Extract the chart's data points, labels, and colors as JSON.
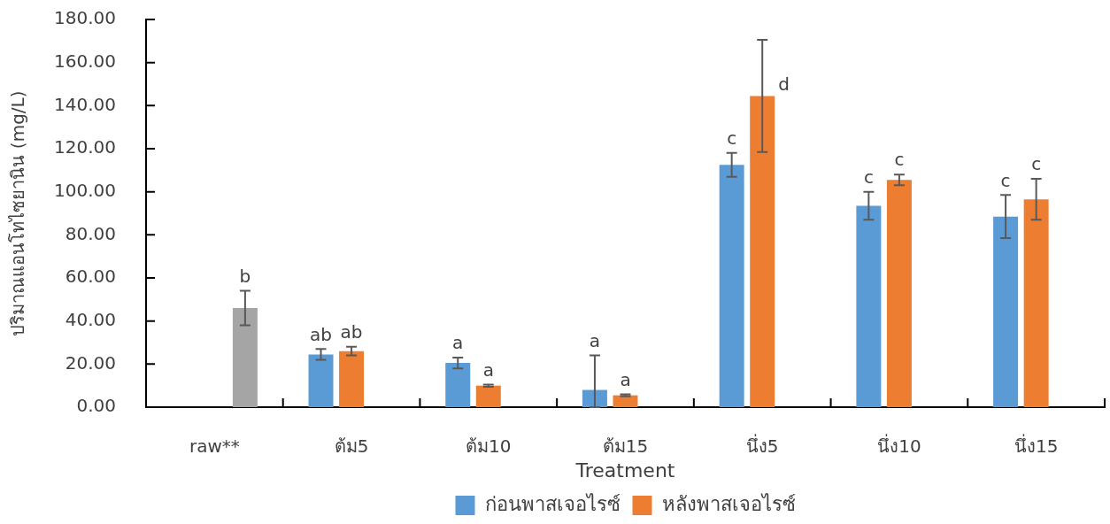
{
  "chart_data": {
    "type": "bar",
    "xlabel": "Treatment",
    "ylabel": "ปริมาณแอนโทไซยานิน (mg/L)",
    "categories": [
      "raw**",
      "ต้ม5",
      "ต้ม10",
      "ต้ม15",
      "นึ่ง5",
      "นึ่ง10",
      "นึ่ง15"
    ],
    "series": [
      {
        "name": "ก่อนพาสเจอไรซ์",
        "color": "#5b9bd5",
        "values": [
          null,
          24.5,
          20.5,
          8,
          112.5,
          93.5,
          88.5
        ],
        "errors": [
          null,
          2.5,
          2.5,
          [
            0,
            24
          ],
          5.5,
          6.5,
          10
        ],
        "value_labels": [
          null,
          "ab",
          "a",
          "a",
          "c",
          "c",
          "c"
        ]
      },
      {
        "name": "หลังพาสเจอไรซ์",
        "color": "#ed7d31",
        "values": [
          null,
          26,
          10,
          5.5,
          144.5,
          105.5,
          96.5
        ],
        "errors": [
          null,
          2,
          0.5,
          0.5,
          26,
          2.5,
          9.5
        ],
        "value_labels": [
          null,
          "ab",
          "a",
          "a",
          "d",
          "c",
          "c"
        ]
      },
      {
        "color": "#a5a5a5",
        "values": [
          46,
          null,
          null,
          null,
          null,
          null,
          null
        ],
        "errors": [
          8,
          null,
          null,
          null,
          null,
          null,
          null
        ],
        "value_labels": [
          "b",
          null,
          null,
          null,
          null,
          null,
          null
        ]
      }
    ],
    "ylim": [
      0,
      180
    ],
    "yticks": [
      {
        "value": 0,
        "label": "0.00"
      },
      {
        "value": 20,
        "label": "20.00"
      },
      {
        "value": 40,
        "label": "40.00"
      },
      {
        "value": 60,
        "label": "60.00"
      },
      {
        "value": 80,
        "label": "80.00"
      },
      {
        "value": 100,
        "label": "100.00"
      },
      {
        "value": 120,
        "label": "120.00"
      },
      {
        "value": 140,
        "label": "140.00"
      },
      {
        "value": 160,
        "label": "160.00"
      },
      {
        "value": 180,
        "label": "180.00"
      }
    ],
    "legend": "bottom"
  }
}
